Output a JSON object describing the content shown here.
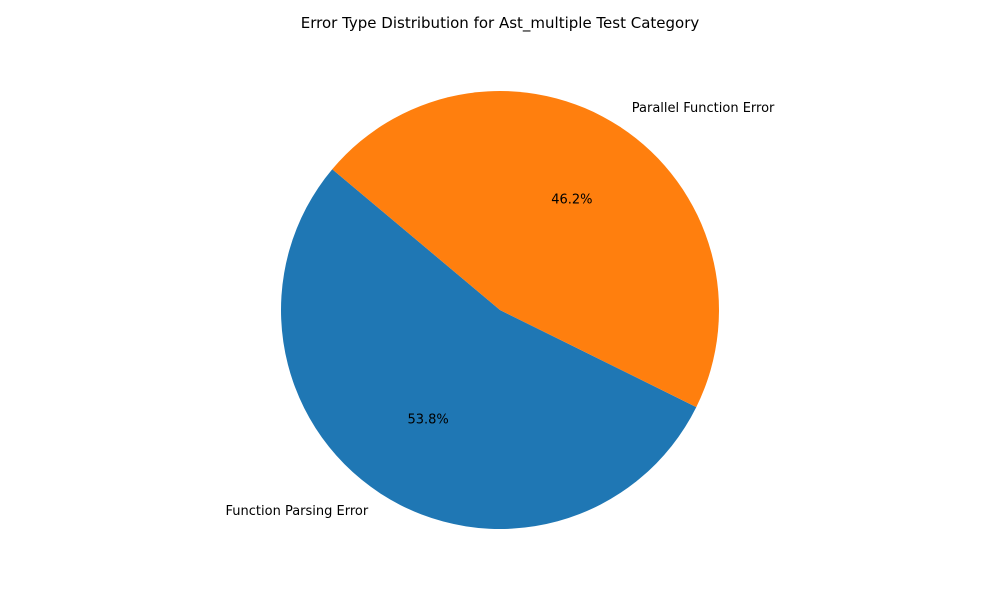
{
  "chart_data": {
    "type": "pie",
    "title": "Error Type Distribution for Ast_multiple Test Category",
    "start_angle_deg": 140,
    "direction": "counterclockwise",
    "legend": "none",
    "slices": [
      {
        "label": "Function Parsing Error",
        "value": 53.8,
        "pct_label": "53.8%",
        "color": "#1f77b4"
      },
      {
        "label": "Parallel Function Error",
        "value": 46.2,
        "pct_label": "46.2%",
        "color": "#ff7f0e"
      }
    ]
  }
}
